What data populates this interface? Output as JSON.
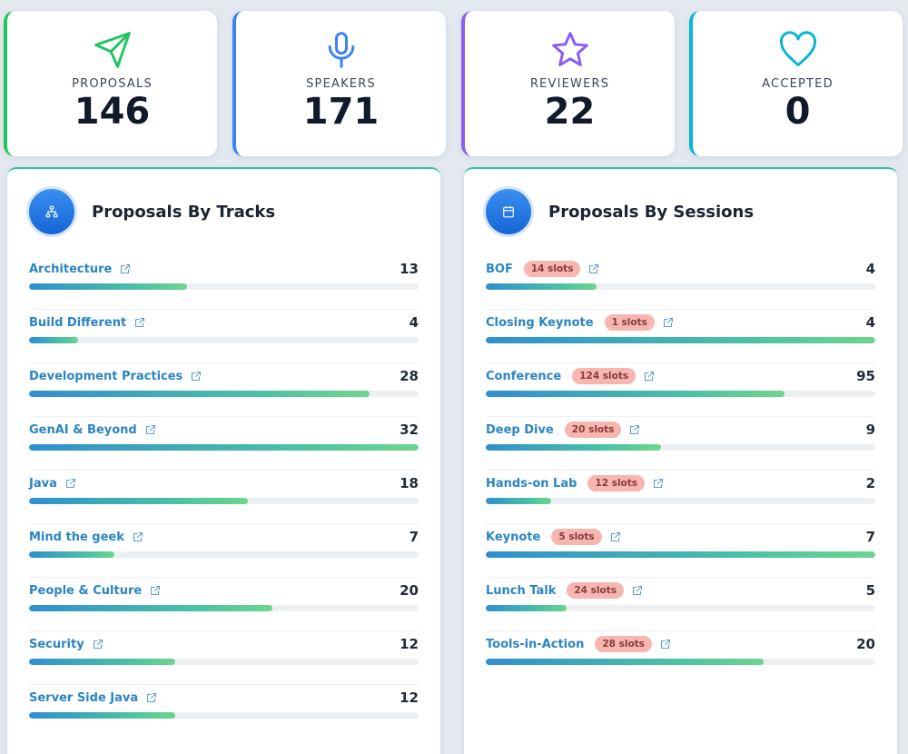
{
  "stats": [
    {
      "label": "PROPOSALS",
      "value": "146",
      "icon": "send-icon",
      "color": "#22c55e"
    },
    {
      "label": "SPEAKERS",
      "value": "171",
      "icon": "microphone-icon",
      "color": "#3b82f6"
    },
    {
      "label": "REVIEWERS",
      "value": "22",
      "icon": "star-icon",
      "color": "#8b5cf6"
    },
    {
      "label": "ACCEPTED",
      "value": "0",
      "icon": "heart-icon",
      "color": "#06b6d4"
    }
  ],
  "tracks": {
    "title": "Proposals By Tracks",
    "icon": "sitemap-icon",
    "max": 32,
    "items": [
      {
        "name": "Architecture",
        "count": 13
      },
      {
        "name": "Build Different",
        "count": 4
      },
      {
        "name": "Development Practices",
        "count": 28
      },
      {
        "name": "GenAI & Beyond",
        "count": 32
      },
      {
        "name": "Java",
        "count": 18
      },
      {
        "name": "Mind the geek",
        "count": 7
      },
      {
        "name": "People & Culture",
        "count": 20
      },
      {
        "name": "Security",
        "count": 12
      },
      {
        "name": "Server Side Java",
        "count": 12
      }
    ]
  },
  "sessions": {
    "title": "Proposals By Sessions",
    "icon": "calendar-icon",
    "items": [
      {
        "name": "BOF",
        "slots": "14 slots",
        "count": 4,
        "fill": 0.285
      },
      {
        "name": "Closing Keynote",
        "slots": "1 slots",
        "count": 4,
        "fill": 1.0
      },
      {
        "name": "Conference",
        "slots": "124 slots",
        "count": 95,
        "fill": 0.766
      },
      {
        "name": "Deep Dive",
        "slots": "20 slots",
        "count": 9,
        "fill": 0.45
      },
      {
        "name": "Hands-on Lab",
        "slots": "12 slots",
        "count": 2,
        "fill": 0.167
      },
      {
        "name": "Keynote",
        "slots": "5 slots",
        "count": 7,
        "fill": 1.0
      },
      {
        "name": "Lunch Talk",
        "slots": "24 slots",
        "count": 5,
        "fill": 0.208
      },
      {
        "name": "Tools-in-Action",
        "slots": "28 slots",
        "count": 20,
        "fill": 0.714
      }
    ]
  }
}
